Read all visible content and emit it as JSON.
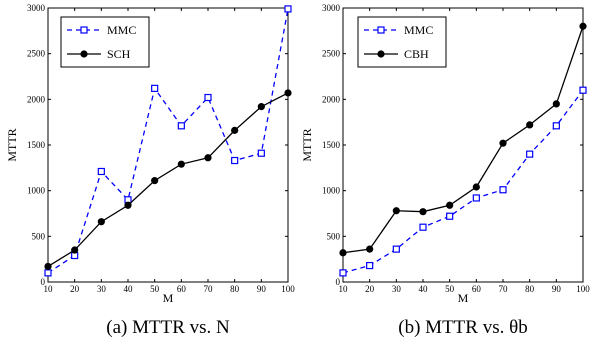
{
  "chart_data": [
    {
      "type": "line",
      "caption": "(a) MTTR vs. N",
      "xlabel": "M",
      "ylabel": "MTTR",
      "x": [
        10,
        20,
        30,
        40,
        50,
        60,
        70,
        80,
        90,
        100
      ],
      "xlim": [
        10,
        100
      ],
      "ylim": [
        0,
        3000
      ],
      "xticks": [
        "10",
        "20",
        "30",
        "40",
        "50",
        "60",
        "70",
        "80",
        "90",
        "100"
      ],
      "yticks": [
        "0",
        "500",
        "1000",
        "1500",
        "2000",
        "2500",
        "3000"
      ],
      "grid": false,
      "legend_position": "top-left",
      "series": [
        {
          "name": "MMC",
          "color": "#0000ff",
          "style": "dashed",
          "marker": "square-open",
          "values": [
            100,
            290,
            1210,
            900,
            2120,
            1710,
            2020,
            1330,
            1410,
            2990
          ]
        },
        {
          "name": "SCH",
          "color": "#000000",
          "style": "solid",
          "marker": "circle-filled",
          "values": [
            170,
            350,
            660,
            840,
            1110,
            1290,
            1360,
            1660,
            1920,
            2070
          ]
        }
      ]
    },
    {
      "type": "line",
      "caption": "(b) MTTR vs. θb",
      "xlabel": "M",
      "ylabel": "MTTR",
      "x": [
        10,
        20,
        30,
        40,
        50,
        60,
        70,
        80,
        90,
        100
      ],
      "xlim": [
        10,
        100
      ],
      "ylim": [
        0,
        3000
      ],
      "xticks": [
        "10",
        "20",
        "30",
        "40",
        "50",
        "60",
        "70",
        "80",
        "90",
        "100"
      ],
      "yticks": [
        "0",
        "500",
        "1000",
        "1500",
        "2000",
        "2500",
        "3000"
      ],
      "grid": false,
      "legend_position": "top-left",
      "series": [
        {
          "name": "MMC",
          "color": "#0000ff",
          "style": "dashed",
          "marker": "square-open",
          "values": [
            100,
            180,
            360,
            600,
            720,
            920,
            1010,
            1400,
            1710,
            2100
          ]
        },
        {
          "name": "CBH",
          "color": "#000000",
          "style": "solid",
          "marker": "circle-filled",
          "values": [
            320,
            360,
            780,
            770,
            840,
            1040,
            1520,
            1720,
            1950,
            2800
          ]
        }
      ]
    }
  ]
}
